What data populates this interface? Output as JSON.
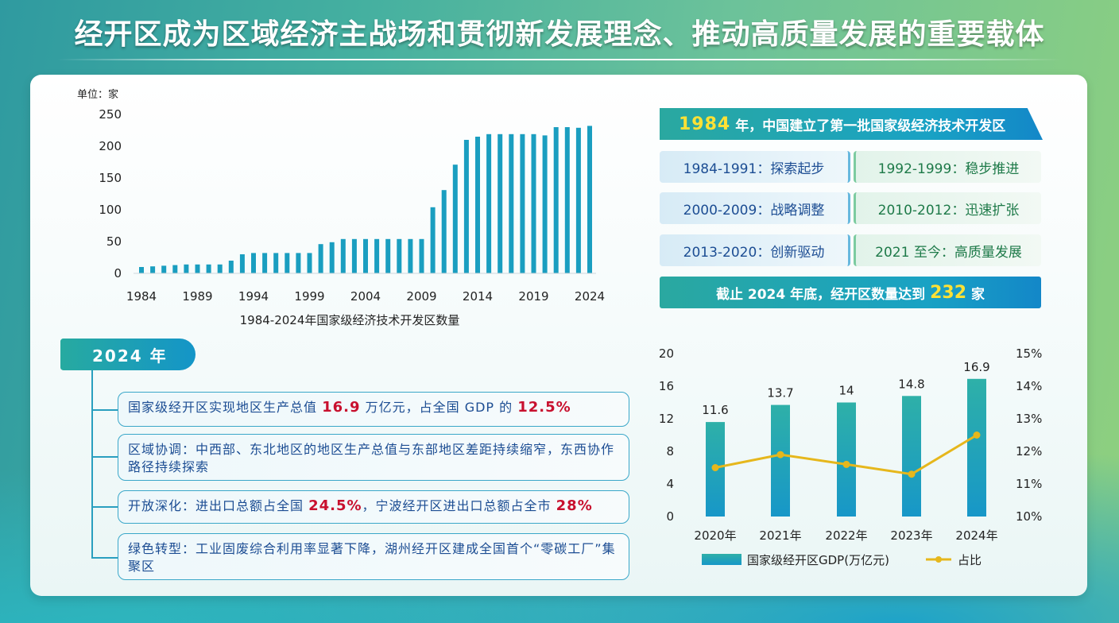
{
  "title": "经开区成为区域经济主战场和贯彻新发展理念、推动高质量发展的重要载体",
  "chart_data": [
    {
      "type": "bar",
      "unit_label": "单位：家",
      "xlabel": "1984-2024年国家级经济技术开发区数量",
      "ylim": [
        0,
        250
      ],
      "y_ticks": [
        "0",
        "50",
        "100",
        "150",
        "200",
        "250"
      ],
      "x_ticks": [
        "1984",
        "1989",
        "1994",
        "1999",
        "2004",
        "2009",
        "2014",
        "2019",
        "2024"
      ],
      "categories": [
        1984,
        1985,
        1986,
        1987,
        1988,
        1989,
        1990,
        1991,
        1992,
        1993,
        1994,
        1995,
        1996,
        1997,
        1998,
        1999,
        2000,
        2001,
        2002,
        2003,
        2004,
        2005,
        2006,
        2007,
        2008,
        2009,
        2010,
        2011,
        2012,
        2013,
        2014,
        2015,
        2016,
        2017,
        2018,
        2019,
        2020,
        2021,
        2022,
        2023,
        2024
      ],
      "values": [
        10,
        11,
        12,
        13,
        14,
        14,
        14,
        14,
        20,
        30,
        32,
        32,
        32,
        32,
        32,
        32,
        46,
        49,
        54,
        54,
        54,
        54,
        54,
        54,
        54,
        54,
        104,
        131,
        171,
        210,
        215,
        219,
        219,
        219,
        219,
        219,
        217,
        230,
        230,
        229,
        232
      ],
      "color": "#1a9ec0"
    },
    {
      "type": "bar+line",
      "categories": [
        "2020年",
        "2021年",
        "2022年",
        "2023年",
        "2024年"
      ],
      "series": [
        {
          "name": "国家级经开区GDP(万亿元)",
          "type": "bar",
          "axis": "left",
          "values": [
            11.6,
            13.7,
            14,
            14.8,
            16.9
          ],
          "labels": [
            "11.6",
            "13.7",
            "14",
            "14.8",
            "16.9"
          ]
        },
        {
          "name": "占比",
          "type": "line",
          "axis": "right",
          "values": [
            11.5,
            11.9,
            11.6,
            11.3,
            12.5
          ]
        }
      ],
      "left_ylim": [
        0,
        20
      ],
      "left_ticks": [
        "0",
        "4",
        "8",
        "12",
        "16",
        "20"
      ],
      "right_ylim": [
        10,
        15
      ],
      "right_ticks": [
        "10%",
        "11%",
        "12%",
        "13%",
        "14%",
        "15%"
      ],
      "bar_color": "#1aa3c6",
      "line_color": "#e6b71c"
    }
  ],
  "info": {
    "banner_year": "1984",
    "banner_text": "年，中国建立了第一批国家级经济技术开发区",
    "stages": [
      {
        "text": "1984-1991：探索起步",
        "tone": "blue"
      },
      {
        "text": "1992-1999：稳步推进",
        "tone": "green"
      },
      {
        "text": "2000-2009：战略调整",
        "tone": "blue"
      },
      {
        "text": "2010-2012：迅速扩张",
        "tone": "green"
      },
      {
        "text": "2013-2020：创新驱动",
        "tone": "blue"
      },
      {
        "text": "2021 至今：高质量发展",
        "tone": "green"
      }
    ],
    "bottom_prefix": "截止 2024 年底，经开区数量达到",
    "bottom_number": "232",
    "bottom_suffix": "家"
  },
  "summary": {
    "year_tab": "2024 年",
    "b1": {
      "a": "国家级经开区实现地区生产总值 ",
      "h1": "16.9",
      "b": " 万亿元，占全国 GDP 的 ",
      "h2": "12.5%"
    },
    "b2": {
      "text": "区域协调：中西部、东北地区的地区生产总值与东部地区差距持续缩窄，东西协作路径持续探索"
    },
    "b3": {
      "a": "开放深化：进出口总额占全国 ",
      "h1": "24.5%",
      "b": "，宁波经开区进出口总额占全市 ",
      "h2": "28%"
    },
    "b4": {
      "text": "绿色转型：工业固废综合利用率显著下降，湖州经开区建成全国首个“零碳工厂”集聚区"
    }
  },
  "colors": {
    "accent_teal": "#27aaa0",
    "accent_blue": "#1495c8",
    "highlight_red": "#c8102e",
    "highlight_yellow": "#ffe135",
    "text_blue": "#1c4d93",
    "text_green": "#1e7a49"
  }
}
